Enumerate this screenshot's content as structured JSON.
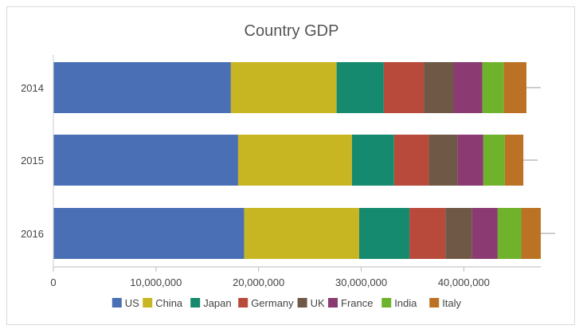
{
  "chart_data": {
    "type": "bar",
    "orientation": "horizontal",
    "stacked": true,
    "title": "Country GDP",
    "xlabel": "",
    "ylabel": "",
    "categories": [
      "2014",
      "2015",
      "2016"
    ],
    "xlim": [
      0,
      47500000
    ],
    "xticks": [
      0,
      10000000,
      20000000,
      30000000,
      40000000
    ],
    "xtick_labels": [
      "0",
      "10,000,000",
      "20,000,000",
      "30,000,000",
      "40,000,000"
    ],
    "grid": false,
    "legend_position": "bottom",
    "series": [
      {
        "name": "US",
        "color": "#4a6fb5",
        "values": [
          17300000,
          18000000,
          18600000
        ]
      },
      {
        "name": "China",
        "color": "#c8b522",
        "values": [
          10300000,
          11100000,
          11200000
        ]
      },
      {
        "name": "Japan",
        "color": "#168a6e",
        "values": [
          4600000,
          4100000,
          4900000
        ]
      },
      {
        "name": "Germany",
        "color": "#b84a3b",
        "values": [
          3900000,
          3400000,
          3500000
        ]
      },
      {
        "name": "UK",
        "color": "#6f5845",
        "values": [
          2900000,
          2800000,
          2600000
        ]
      },
      {
        "name": "France",
        "color": "#8b3a72",
        "values": [
          2800000,
          2500000,
          2500000
        ]
      },
      {
        "name": "India",
        "color": "#6fb22c",
        "values": [
          2100000,
          2100000,
          2300000
        ]
      },
      {
        "name": "Italy",
        "color": "#bb7225",
        "values": [
          2200000,
          1800000,
          1900000
        ]
      }
    ]
  }
}
